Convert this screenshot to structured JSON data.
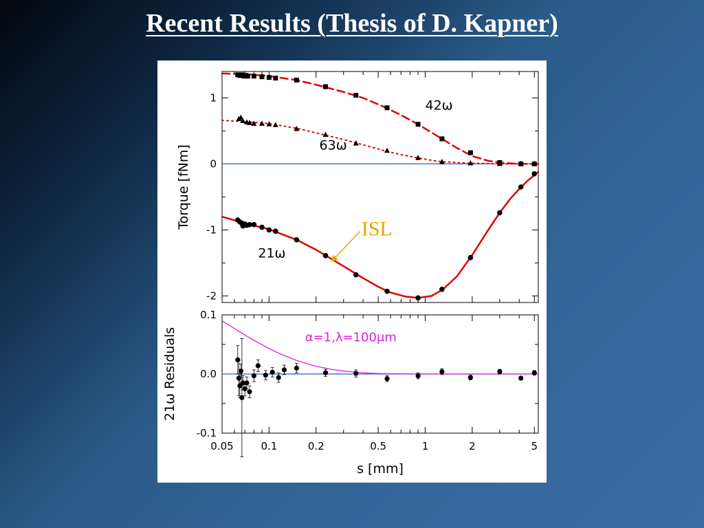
{
  "slide": {
    "title": "Recent Results (Thesis of D. Kapner)"
  },
  "colors": {
    "fit_curve": "#e00000",
    "zero_line": "#3355dd",
    "alpha_curve": "#dd22dd",
    "isl_text": "#f0a000",
    "data_points": "#000000"
  },
  "chart_data": [
    {
      "type": "line",
      "panel": "top",
      "xscale": "log",
      "xlim": [
        0.05,
        5.3
      ],
      "ylim": [
        -2.1,
        1.4
      ],
      "yticks": [
        {
          "value": 1,
          "label": "1"
        },
        {
          "value": 0,
          "label": "0"
        },
        {
          "value": -1,
          "label": "-1"
        },
        {
          "value": -2,
          "label": "-2"
        }
      ],
      "ylabel": "Torque [fNm]",
      "zero_line": true,
      "series": [
        {
          "name": "42ω",
          "marker": "square",
          "curve_style": "dashed",
          "points": [
            [
              0.063,
              1.35
            ],
            [
              0.065,
              1.34
            ],
            [
              0.067,
              1.35
            ],
            [
              0.069,
              1.33
            ],
            [
              0.071,
              1.34
            ],
            [
              0.073,
              1.33
            ],
            [
              0.08,
              1.33
            ],
            [
              0.09,
              1.32
            ],
            [
              0.1,
              1.31
            ],
            [
              0.11,
              1.3
            ],
            [
              0.15,
              1.27
            ],
            [
              0.23,
              1.17
            ],
            [
              0.36,
              1.04
            ],
            [
              0.57,
              0.85
            ],
            [
              0.9,
              0.6
            ],
            [
              1.28,
              0.38
            ],
            [
              1.95,
              0.17
            ],
            [
              3.0,
              0.02
            ],
            [
              4.1,
              0.0
            ],
            [
              5.0,
              0.0
            ]
          ],
          "fit": [
            [
              0.05,
              1.37
            ],
            [
              0.07,
              1.36
            ],
            [
              0.1,
              1.33
            ],
            [
              0.15,
              1.27
            ],
            [
              0.2,
              1.2
            ],
            [
              0.3,
              1.09
            ],
            [
              0.4,
              1.0
            ],
            [
              0.55,
              0.86
            ],
            [
              0.7,
              0.74
            ],
            [
              0.9,
              0.6
            ],
            [
              1.2,
              0.42
            ],
            [
              1.6,
              0.24
            ],
            [
              2.0,
              0.12
            ],
            [
              2.5,
              0.05
            ],
            [
              3.0,
              0.02
            ],
            [
              4.0,
              0.0
            ],
            [
              5.3,
              0.0
            ]
          ]
        },
        {
          "name": "63ω",
          "marker": "triangle",
          "curve_style": "dotted",
          "points": [
            [
              0.064,
              0.68
            ],
            [
              0.066,
              0.7
            ],
            [
              0.068,
              0.65
            ],
            [
              0.072,
              0.63
            ],
            [
              0.075,
              0.62
            ],
            [
              0.08,
              0.61
            ],
            [
              0.09,
              0.61
            ],
            [
              0.1,
              0.6
            ],
            [
              0.11,
              0.59
            ],
            [
              0.15,
              0.53
            ],
            [
              0.23,
              0.44
            ],
            [
              0.36,
              0.31
            ],
            [
              0.57,
              0.2
            ],
            [
              0.9,
              0.09
            ],
            [
              1.28,
              0.03
            ],
            [
              1.95,
              0.01
            ],
            [
              3.0,
              0.0
            ],
            [
              4.1,
              0.0
            ],
            [
              5.0,
              0.0
            ]
          ],
          "fit": [
            [
              0.05,
              0.66
            ],
            [
              0.07,
              0.64
            ],
            [
              0.1,
              0.61
            ],
            [
              0.15,
              0.54
            ],
            [
              0.2,
              0.47
            ],
            [
              0.3,
              0.37
            ],
            [
              0.4,
              0.29
            ],
            [
              0.55,
              0.2
            ],
            [
              0.7,
              0.14
            ],
            [
              0.9,
              0.09
            ],
            [
              1.2,
              0.04
            ],
            [
              1.6,
              0.02
            ],
            [
              2.0,
              0.01
            ],
            [
              3.0,
              0.0
            ],
            [
              5.3,
              0.0
            ]
          ]
        },
        {
          "name": "21ω",
          "marker": "circle",
          "curve_style": "solid",
          "points": [
            [
              0.063,
              -0.85
            ],
            [
              0.065,
              -0.88
            ],
            [
              0.067,
              -0.9
            ],
            [
              0.068,
              -0.94
            ],
            [
              0.07,
              -0.91
            ],
            [
              0.072,
              -0.93
            ],
            [
              0.075,
              -0.92
            ],
            [
              0.08,
              -0.92
            ],
            [
              0.09,
              -0.96
            ],
            [
              0.1,
              -1.0
            ],
            [
              0.11,
              -1.02
            ],
            [
              0.15,
              -1.15
            ],
            [
              0.23,
              -1.39
            ],
            [
              0.36,
              -1.68
            ],
            [
              0.57,
              -1.93
            ],
            [
              0.9,
              -2.03
            ],
            [
              1.28,
              -1.9
            ],
            [
              1.95,
              -1.42
            ],
            [
              3.0,
              -0.74
            ],
            [
              4.1,
              -0.35
            ],
            [
              5.0,
              -0.15
            ]
          ],
          "fit": [
            [
              0.05,
              -0.8
            ],
            [
              0.07,
              -0.9
            ],
            [
              0.1,
              -0.99
            ],
            [
              0.15,
              -1.15
            ],
            [
              0.2,
              -1.3
            ],
            [
              0.3,
              -1.55
            ],
            [
              0.4,
              -1.73
            ],
            [
              0.5,
              -1.86
            ],
            [
              0.6,
              -1.95
            ],
            [
              0.75,
              -2.01
            ],
            [
              0.9,
              -2.03
            ],
            [
              1.1,
              -2.0
            ],
            [
              1.3,
              -1.9
            ],
            [
              1.6,
              -1.7
            ],
            [
              2.0,
              -1.38
            ],
            [
              2.5,
              -1.02
            ],
            [
              3.0,
              -0.74
            ],
            [
              3.5,
              -0.53
            ],
            [
              4.0,
              -0.38
            ],
            [
              4.5,
              -0.26
            ],
            [
              5.3,
              -0.12
            ]
          ]
        }
      ],
      "annotations": [
        {
          "text": "ISL",
          "points_to": [
            0.25,
            -1.48
          ]
        }
      ]
    },
    {
      "type": "scatter",
      "panel": "bottom",
      "xscale": "log",
      "xlim": [
        0.05,
        5.3
      ],
      "ylim": [
        -0.1,
        0.1
      ],
      "xticks": [
        {
          "value": 0.05,
          "label": "0.05"
        },
        {
          "value": 0.1,
          "label": "0.1"
        },
        {
          "value": 0.2,
          "label": "0.2"
        },
        {
          "value": 0.5,
          "label": "0.5"
        },
        {
          "value": 1,
          "label": "1"
        },
        {
          "value": 2,
          "label": "2"
        },
        {
          "value": 5,
          "label": "5"
        }
      ],
      "yticks": [
        {
          "value": 0.1,
          "label": "0.1"
        },
        {
          "value": 0.0,
          "label": "0.0"
        },
        {
          "value": -0.1,
          "label": "-0.1"
        }
      ],
      "xlabel": "s [mm]",
      "ylabel": "21ω Residuals",
      "zero_line": true,
      "series": [
        {
          "name": "21ω",
          "marker": "circle",
          "points": [
            [
              0.063,
              0.024,
              0.024
            ],
            [
              0.064,
              -0.007,
              0.03
            ],
            [
              0.065,
              -0.02,
              0.02
            ],
            [
              0.066,
              0.005,
              0.012
            ],
            [
              0.067,
              -0.04,
              0.1
            ],
            [
              0.068,
              -0.015,
              0.012
            ],
            [
              0.07,
              -0.025,
              0.012
            ],
            [
              0.072,
              -0.015,
              0.01
            ],
            [
              0.075,
              -0.03,
              0.01
            ],
            [
              0.08,
              -0.003,
              0.01
            ],
            [
              0.085,
              0.014,
              0.01
            ],
            [
              0.095,
              -0.002,
              0.008
            ],
            [
              0.105,
              0.003,
              0.008
            ],
            [
              0.115,
              -0.006,
              0.008
            ],
            [
              0.125,
              0.007,
              0.008
            ],
            [
              0.15,
              0.01,
              0.008
            ],
            [
              0.23,
              0.002,
              0.006
            ],
            [
              0.36,
              0.001,
              0.006
            ],
            [
              0.57,
              -0.008,
              0.005
            ],
            [
              0.9,
              -0.003,
              0.005
            ],
            [
              1.28,
              0.004,
              0.005
            ],
            [
              1.95,
              -0.006,
              0.004
            ],
            [
              3.0,
              0.004,
              0.004
            ],
            [
              4.1,
              -0.007,
              0.003
            ],
            [
              5.0,
              0.002,
              0.004
            ]
          ]
        },
        {
          "name": "α=1,λ=100μm",
          "style": "curve",
          "fit": [
            [
              0.05,
              0.09
            ],
            [
              0.06,
              0.077
            ],
            [
              0.07,
              0.066
            ],
            [
              0.08,
              0.057
            ],
            [
              0.1,
              0.043
            ],
            [
              0.12,
              0.033
            ],
            [
              0.15,
              0.023
            ],
            [
              0.2,
              0.013
            ],
            [
              0.25,
              0.008
            ],
            [
              0.3,
              0.005
            ],
            [
              0.4,
              0.002
            ],
            [
              0.5,
              0.0008
            ],
            [
              0.7,
              0.0002
            ],
            [
              1,
              0.0
            ],
            [
              5.3,
              0.0
            ]
          ]
        }
      ]
    }
  ]
}
